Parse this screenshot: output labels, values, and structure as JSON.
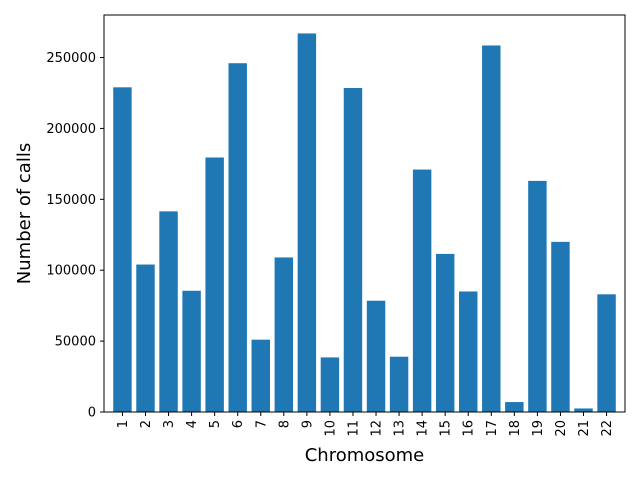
{
  "chart_data": {
    "type": "bar",
    "title": "",
    "xlabel": "Chromosome",
    "ylabel": "Number of calls",
    "categories": [
      "1",
      "2",
      "3",
      "4",
      "5",
      "6",
      "7",
      "8",
      "9",
      "10",
      "11",
      "12",
      "13",
      "14",
      "15",
      "16",
      "17",
      "18",
      "19",
      "20",
      "21",
      "22"
    ],
    "values": [
      229000,
      104000,
      141500,
      85500,
      179500,
      246000,
      51000,
      109000,
      267000,
      38500,
      228500,
      78500,
      39000,
      171000,
      111500,
      85000,
      258500,
      7000,
      163000,
      120000,
      2500,
      83000
    ],
    "ylim": [
      0,
      280000
    ],
    "yticks": [
      0,
      50000,
      100000,
      150000,
      200000,
      250000
    ],
    "ytick_labels": [
      "0",
      "50000",
      "100000",
      "150000",
      "200000",
      "250000"
    ],
    "bar_color": "#1f77b4",
    "grid": false,
    "legend": "none"
  }
}
